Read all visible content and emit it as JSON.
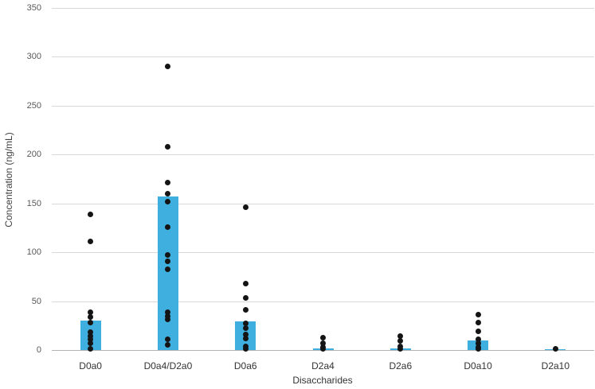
{
  "chart_data": {
    "type": "bar",
    "subtype": "bar-with-scatter-overlay",
    "title": "",
    "xlabel": "Disaccharides",
    "ylabel": "Concentration (ng/mL)",
    "ylim": [
      0,
      350
    ],
    "yticks": [
      0,
      50,
      100,
      150,
      200,
      250,
      300,
      350
    ],
    "grid": true,
    "legend_position": "none",
    "categories": [
      "D0a0",
      "D0a4/D2a0",
      "D0a6",
      "D2a4",
      "D2a6",
      "D0a10",
      "D2a10"
    ],
    "series": [
      {
        "name": "mean-bar",
        "values": [
          30,
          157,
          29,
          2,
          2,
          10,
          1
        ]
      }
    ],
    "scatter_points": [
      [
        139,
        111,
        39,
        34,
        28,
        18,
        14,
        11,
        7,
        1
      ],
      [
        290,
        208,
        171,
        160,
        152,
        126,
        97,
        91,
        83,
        39,
        35,
        31,
        11,
        5
      ],
      [
        146,
        68,
        53,
        41,
        27,
        22,
        16,
        12,
        4,
        1
      ],
      [
        13,
        7,
        3,
        1
      ],
      [
        14,
        9,
        4,
        1
      ],
      [
        36,
        28,
        19,
        11,
        7,
        3,
        1
      ],
      [
        1
      ]
    ],
    "colors": {
      "bar": "#3fafe0",
      "point": "#141414",
      "gridline": "#d9d9d9",
      "axis_line": "#b3b3b3",
      "tick_label": "#595959",
      "category_label": "#333333"
    }
  }
}
